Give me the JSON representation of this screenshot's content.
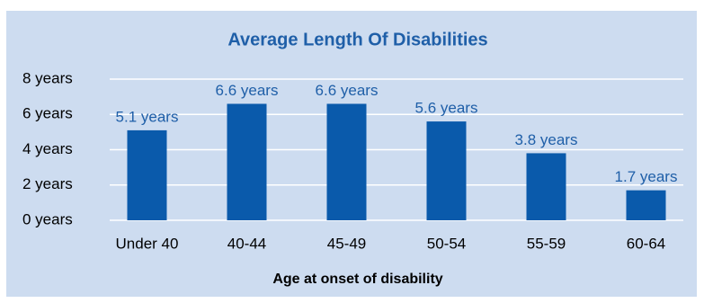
{
  "chart_data": {
    "type": "bar",
    "title": "Average Length Of Disabilities",
    "x_label": "Age at onset of disability",
    "categories": [
      "Under 40",
      "40-44",
      "45-49",
      "50-54",
      "55-59",
      "60-64"
    ],
    "values": [
      5.1,
      6.6,
      6.6,
      5.6,
      3.8,
      1.7
    ],
    "value_labels": [
      "5.1 years",
      "6.6 years",
      "6.6 years",
      "5.6 years",
      "3.8 years",
      "1.7 years"
    ],
    "color": "#0a5aab",
    "ylim": [
      0,
      8
    ],
    "yticks": [
      {
        "value": 0,
        "label": "0 years"
      },
      {
        "value": 2,
        "label": "2 years"
      },
      {
        "value": 4,
        "label": "4 years"
      },
      {
        "value": 6,
        "label": "6 years"
      },
      {
        "value": 8,
        "label": "8 years"
      }
    ],
    "grid": true
  }
}
